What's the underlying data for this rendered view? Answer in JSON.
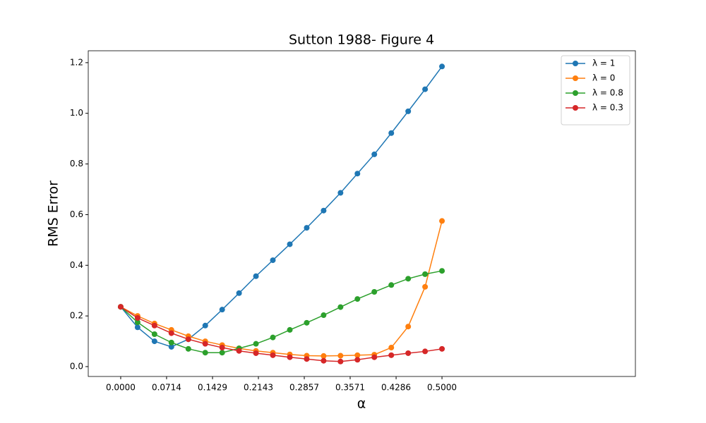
{
  "chart_data": {
    "type": "line",
    "title": "Sutton 1988- Figure 4",
    "xlabel": "α",
    "ylabel": "RMS Error",
    "x": [
      0,
      0.0263,
      0.0526,
      0.0789,
      0.1053,
      0.1316,
      0.1579,
      0.1842,
      0.2105,
      0.2368,
      0.2632,
      0.2895,
      0.3158,
      0.3421,
      0.3684,
      0.3947,
      0.4211,
      0.4474,
      0.4737,
      0.5
    ],
    "series": [
      {
        "name": "λ = 1",
        "color": "#1f77b4",
        "values": [
          0.236,
          0.155,
          0.1,
          0.078,
          0.108,
          0.162,
          0.225,
          0.29,
          0.357,
          0.42,
          0.483,
          0.548,
          0.616,
          0.686,
          0.762,
          0.838,
          0.922,
          1.008,
          1.095,
          1.185
        ]
      },
      {
        "name": "λ = 0",
        "color": "#ff7f0e",
        "values": [
          0.236,
          0.2,
          0.17,
          0.145,
          0.12,
          0.1,
          0.085,
          0.072,
          0.062,
          0.055,
          0.048,
          0.043,
          0.042,
          0.043,
          0.045,
          0.047,
          0.075,
          0.158,
          0.315,
          0.575
        ]
      },
      {
        "name": "λ = 0.8",
        "color": "#2ca02c",
        "values": [
          0.236,
          0.175,
          0.128,
          0.095,
          0.07,
          0.055,
          0.055,
          0.072,
          0.09,
          0.115,
          0.145,
          0.173,
          0.203,
          0.235,
          0.267,
          0.295,
          0.322,
          0.347,
          0.365,
          0.378
        ]
      },
      {
        "name": "λ = 0.3",
        "color": "#d62728",
        "values": [
          0.236,
          0.192,
          0.162,
          0.132,
          0.108,
          0.09,
          0.075,
          0.062,
          0.053,
          0.045,
          0.037,
          0.03,
          0.023,
          0.02,
          0.027,
          0.037,
          0.045,
          0.053,
          0.06,
          0.07
        ]
      }
    ],
    "xlim": [
      -0.0505,
      0.801
    ],
    "xticks": [
      {
        "value": 0,
        "label": "0.0000"
      },
      0.0714,
      0.1429,
      0.2143,
      0.2857,
      0.3571,
      0.4286,
      {
        "value": 0.5,
        "label": "0.5000"
      }
    ],
    "ylim": [
      -0.039,
      1.247
    ],
    "yticks": [
      {
        "value": 0,
        "label": "0.0"
      },
      0.2,
      0.4,
      0.6,
      0.8,
      {
        "value": 1,
        "label": "1.0"
      },
      1.2
    ],
    "legend": "upper right",
    "grid": false
  }
}
